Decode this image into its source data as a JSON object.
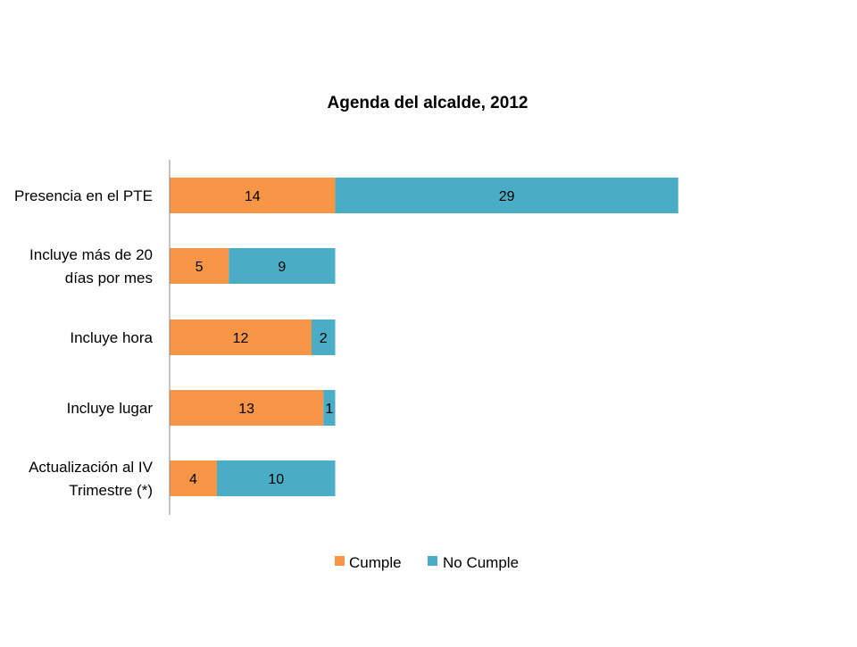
{
  "chart_data": {
    "type": "bar",
    "orientation": "horizontal",
    "stacked": true,
    "title": "Agenda del alcalde, 2012",
    "xlabel": "",
    "ylabel": "",
    "categories": [
      [
        "Presencia en el PTE"
      ],
      [
        "Incluye más de 20",
        "días por mes"
      ],
      [
        "Incluye hora"
      ],
      [
        "Incluye lugar"
      ],
      [
        "Actualización al IV",
        "Trimestre (*)"
      ]
    ],
    "series": [
      {
        "name": "Cumple",
        "color": "#F79646",
        "values": [
          14,
          5,
          12,
          13,
          4
        ]
      },
      {
        "name": "No Cumple",
        "color": "#4BACC6",
        "values": [
          29,
          9,
          2,
          1,
          10
        ]
      }
    ],
    "data_labels": true,
    "grid": false,
    "legend_position": "bottom"
  }
}
